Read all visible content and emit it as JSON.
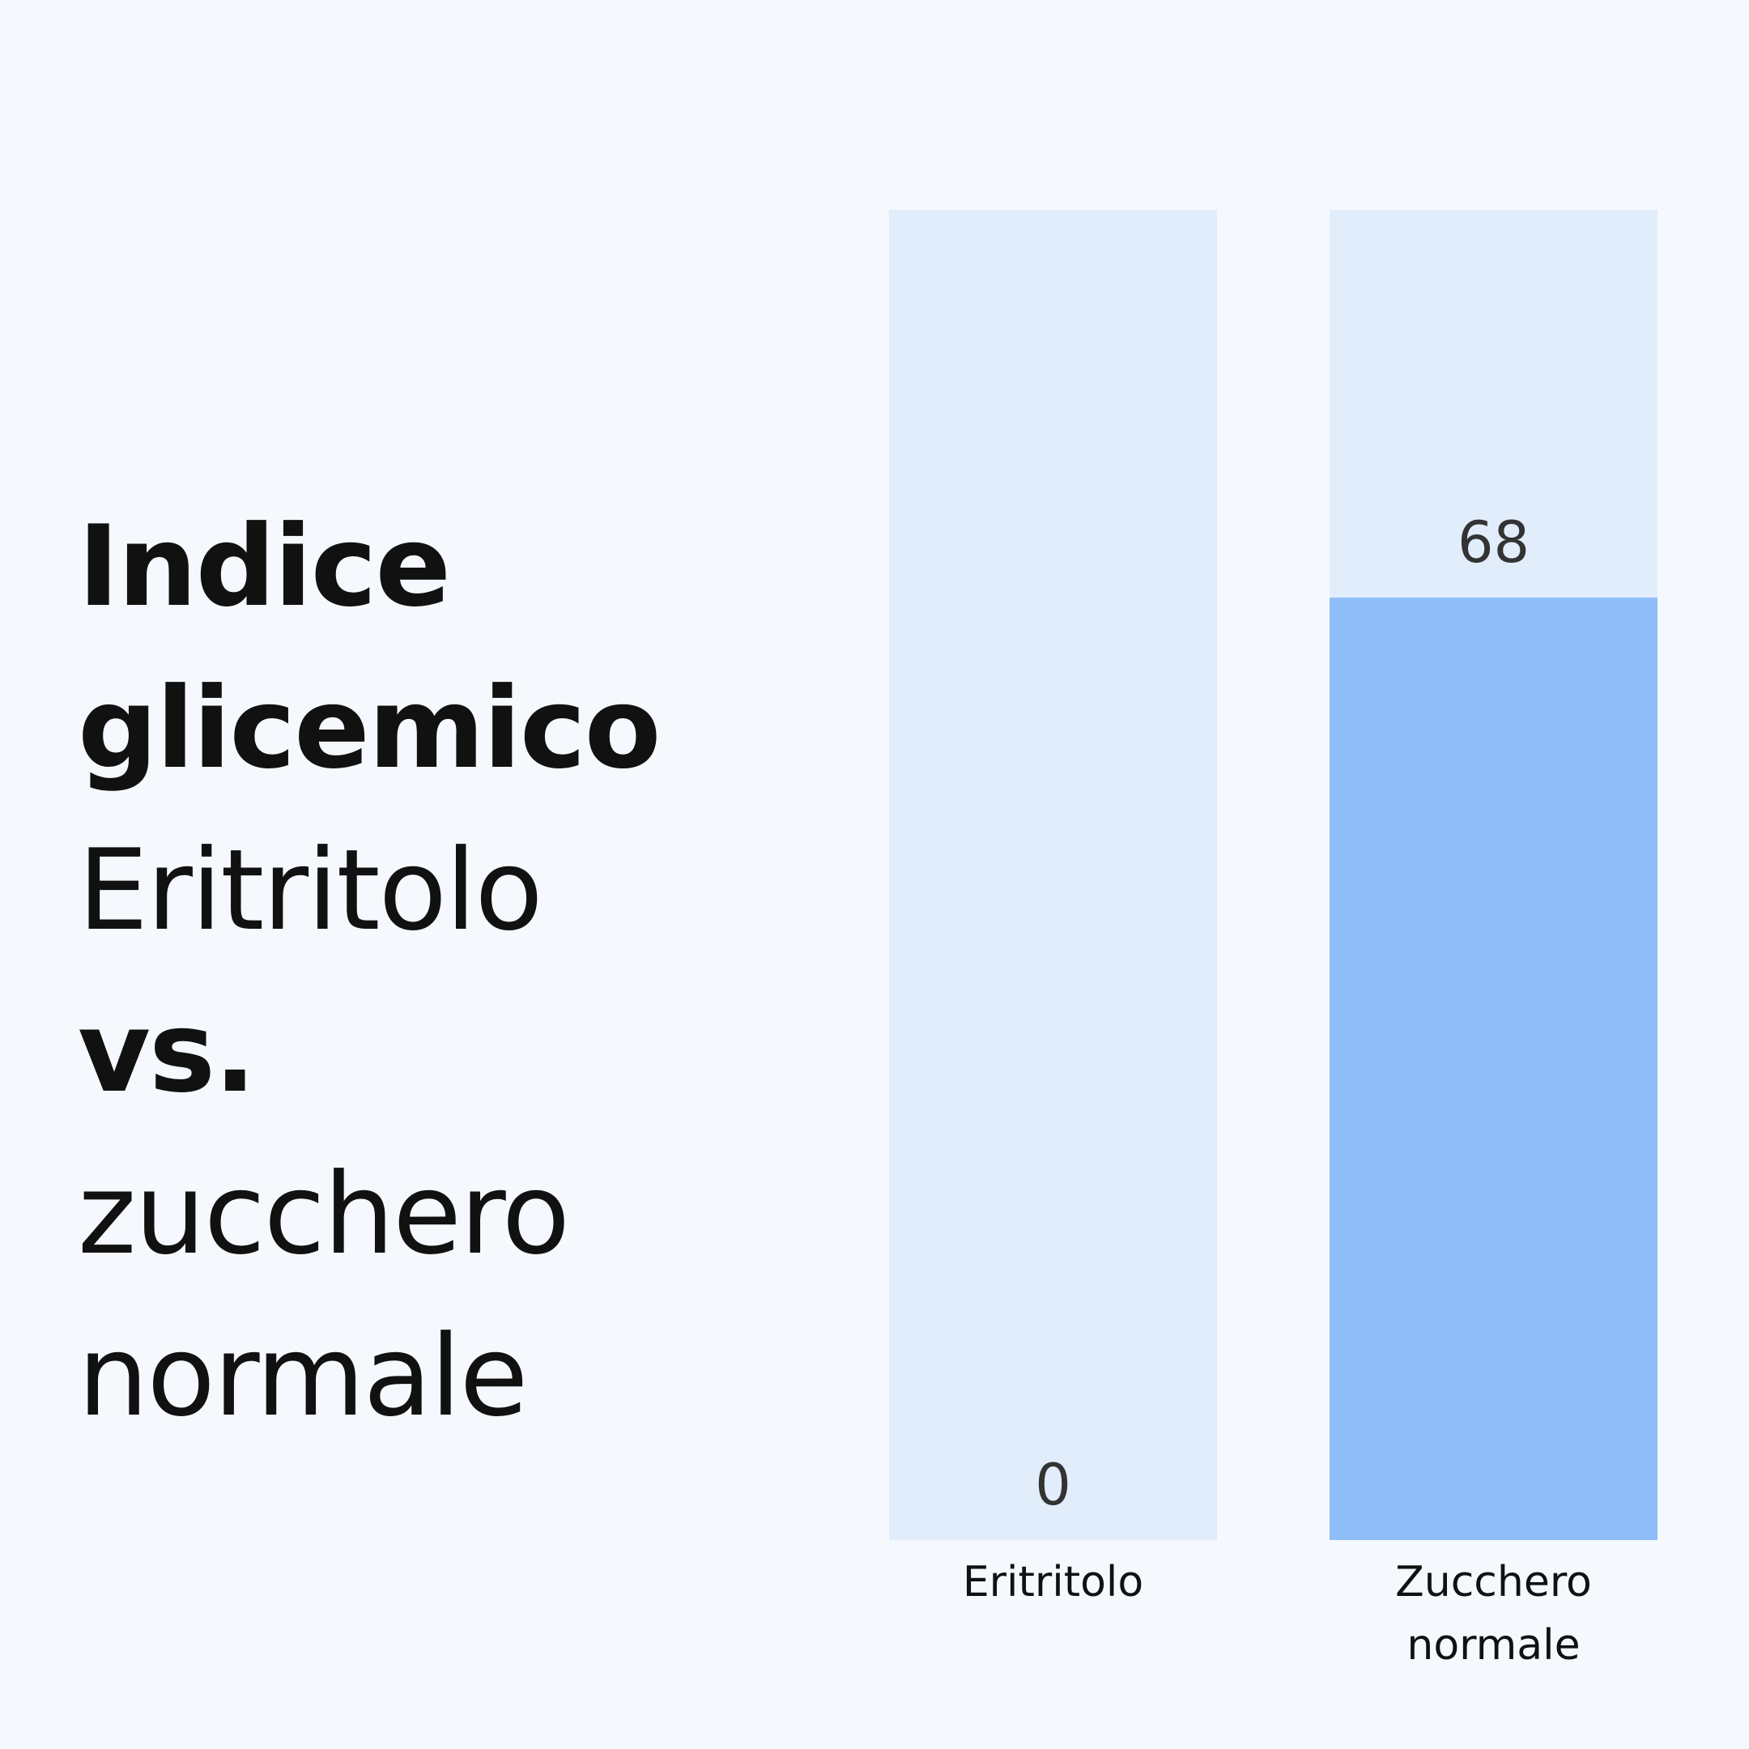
{
  "chart_data": {
    "type": "bar",
    "title": "Indice glicemico",
    "subtitle": [
      "Eritritolo",
      "vs.",
      "zucchero normale"
    ],
    "categories": [
      "Eritritolo",
      "Zucchero normale"
    ],
    "values": [
      0,
      68
    ],
    "color": "#8fbef8",
    "track_color": "#e1edfa",
    "ylim": [
      0,
      96
    ]
  }
}
